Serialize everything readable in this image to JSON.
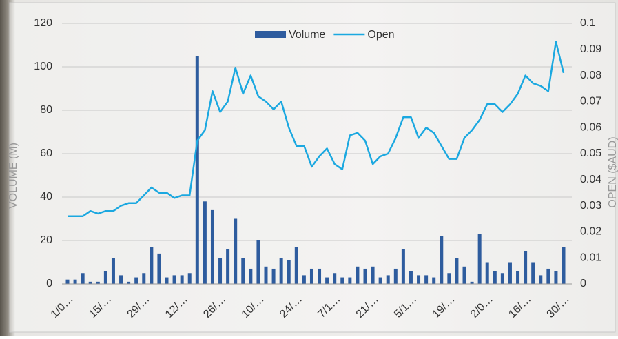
{
  "chart_data": {
    "type": "bar-line",
    "ylabel": "VOLUME (M)",
    "y2label": "OPEN ($AUD)",
    "categories": [
      "1/0…",
      null,
      null,
      null,
      null,
      "15/…",
      null,
      null,
      null,
      null,
      "29/…",
      null,
      null,
      null,
      null,
      "12/…",
      null,
      null,
      null,
      null,
      "26/…",
      null,
      null,
      null,
      null,
      "10/…",
      null,
      null,
      null,
      null,
      "24/…",
      null,
      null,
      null,
      null,
      "7/1…",
      null,
      null,
      null,
      null,
      "21/…",
      null,
      null,
      null,
      null,
      "5/1…",
      null,
      null,
      null,
      null,
      "19/…",
      null,
      null,
      null,
      null,
      "2/0…",
      null,
      null,
      null,
      null,
      "16/…",
      null,
      null,
      null,
      null,
      "30/…"
    ],
    "series": [
      {
        "name": "Volume",
        "color": "#2e5c9e",
        "type": "bar",
        "values": [
          2,
          2,
          5,
          1,
          1,
          6,
          12,
          4,
          1,
          3,
          5,
          17,
          14,
          3,
          4,
          4,
          5,
          105,
          38,
          34,
          12,
          16,
          30,
          12,
          7,
          20,
          8,
          7,
          12,
          11,
          17,
          4,
          7,
          7,
          3,
          5,
          3,
          3,
          8,
          7,
          8,
          3,
          4,
          7,
          16,
          6,
          4,
          4,
          3,
          22,
          5,
          12,
          8,
          1,
          23,
          10,
          6,
          5,
          10,
          6,
          15,
          10,
          4,
          7,
          6,
          17
        ]
      },
      {
        "name": "Open",
        "color": "#1ba8e0",
        "type": "line",
        "axis": "y2",
        "values": [
          0.026,
          0.026,
          0.026,
          0.028,
          0.027,
          0.028,
          0.028,
          0.03,
          0.031,
          0.031,
          0.034,
          0.037,
          0.035,
          0.035,
          0.033,
          0.034,
          0.034,
          0.055,
          0.059,
          0.074,
          0.066,
          0.07,
          0.083,
          0.073,
          0.08,
          0.072,
          0.07,
          0.067,
          0.07,
          0.06,
          0.053,
          0.053,
          0.045,
          0.049,
          0.052,
          0.046,
          0.044,
          0.057,
          0.058,
          0.055,
          0.046,
          0.049,
          0.05,
          0.056,
          0.064,
          0.064,
          0.056,
          0.06,
          0.058,
          0.053,
          0.048,
          0.048,
          0.056,
          0.059,
          0.063,
          0.069,
          0.069,
          0.066,
          0.069,
          0.073,
          0.08,
          0.077,
          0.076,
          0.074,
          0.093,
          0.081
        ]
      }
    ],
    "ylim": [
      0,
      120
    ],
    "yticks": [
      0,
      20,
      40,
      60,
      80,
      100,
      120
    ],
    "y2lim": [
      0,
      0.1
    ],
    "y2ticks": [
      0,
      0.01,
      0.02,
      0.03,
      0.04,
      0.05,
      0.06,
      0.07,
      0.08,
      0.09,
      0.1
    ],
    "grid": true,
    "legend": "top"
  }
}
